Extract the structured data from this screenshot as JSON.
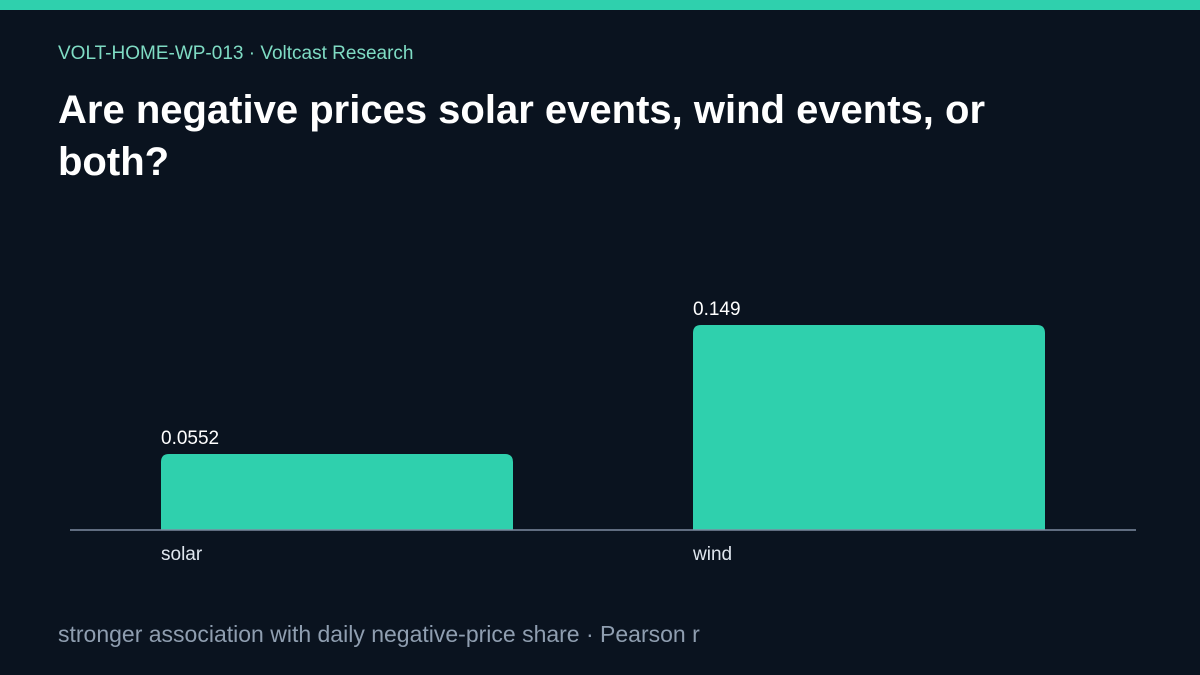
{
  "header": {
    "kicker": "VOLT-HOME-WP-013 · Voltcast Research",
    "title": "Are negative prices solar events, wind events, or both?"
  },
  "footer": {
    "note": "stronger association with daily negative-price share · Pearson r"
  },
  "colors": {
    "accent": "#2fd0ad",
    "background": "#0a131f",
    "axis": "#7d8ba0"
  },
  "chart_data": {
    "type": "bar",
    "categories": [
      "solar",
      "wind"
    ],
    "values": [
      0.0552,
      0.149
    ],
    "value_labels": [
      "0.0552",
      "0.149"
    ],
    "title": "",
    "xlabel": "",
    "ylabel": "",
    "ylim": [
      0,
      0.149
    ],
    "grid": false
  }
}
